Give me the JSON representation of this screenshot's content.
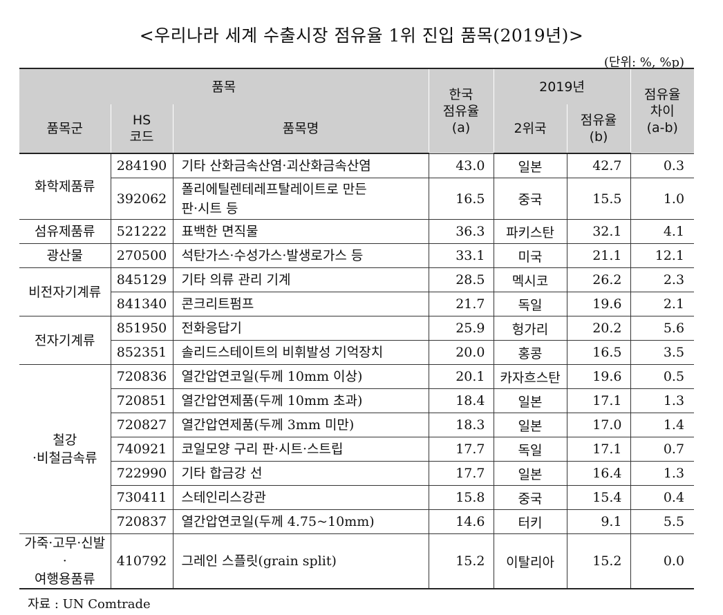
{
  "title": "<우리나라 세계 수출시장 점유율 1위 진입 품목(2019년)>",
  "unit": "(단위: %, %p)",
  "header": {
    "item": "품목",
    "korea_share_l1": "한국",
    "korea_share_l2": "점유율",
    "korea_share_l3": "(a)",
    "year": "2019년",
    "share_diff_l1": "점유율",
    "share_diff_l2": "차이",
    "share_diff_l3": "(a-b)",
    "group": "품목군",
    "hs_l1": "HS",
    "hs_l2": "코드",
    "item_name": "품목명",
    "second_country": "2위국",
    "second_share_l1": "점유율",
    "second_share_l2": "(b)"
  },
  "groups": [
    {
      "name": "화학제품류"
    },
    {
      "name": "섬유제품류"
    },
    {
      "name": "광산물"
    },
    {
      "name": "비전자기계류"
    },
    {
      "name": "전자기계류"
    },
    {
      "name_l1": "철강",
      "name_l2": "·비철금속류"
    },
    {
      "name_l1": "가죽·고무·신발·",
      "name_l2": "여행용품류"
    }
  ],
  "rows": [
    {
      "hs": "284190",
      "name": "기타 산화금속산염·괴산화금속산염",
      "a": "43.0",
      "country": "일본",
      "b": "42.7",
      "diff": "0.3"
    },
    {
      "hs": "392062",
      "name_l1": "폴리에틸렌테레프탈레이트로 만든",
      "name_l2": "판·시트 등",
      "a": "16.5",
      "country": "중국",
      "b": "15.5",
      "diff": "1.0"
    },
    {
      "hs": "521222",
      "name": "표백한 면직물",
      "a": "36.3",
      "country": "파키스탄",
      "b": "32.1",
      "diff": "4.1"
    },
    {
      "hs": "270500",
      "name": "석탄가스·수성가스·발생로가스 등",
      "a": "33.1",
      "country": "미국",
      "b": "21.1",
      "diff": "12.1"
    },
    {
      "hs": "845129",
      "name": "기타 의류 관리 기계",
      "a": "28.5",
      "country": "멕시코",
      "b": "26.2",
      "diff": "2.3"
    },
    {
      "hs": "841340",
      "name": "콘크리트펌프",
      "a": "21.7",
      "country": "독일",
      "b": "19.6",
      "diff": "2.1"
    },
    {
      "hs": "851950",
      "name": "전화응답기",
      "a": "25.9",
      "country": "헝가리",
      "b": "20.2",
      "diff": "5.6"
    },
    {
      "hs": "852351",
      "name": "솔리드스테이트의 비휘발성 기억장치",
      "a": "20.0",
      "country": "홍콩",
      "b": "16.5",
      "diff": "3.5"
    },
    {
      "hs": "720836",
      "name": "열간압연코일(두께 10mm 이상)",
      "a": "20.1",
      "country": "카자흐스탄",
      "b": "19.6",
      "diff": "0.5"
    },
    {
      "hs": "720851",
      "name": "열간압연제품(두께 10mm 초과)",
      "a": "18.4",
      "country": "일본",
      "b": "17.1",
      "diff": "1.3"
    },
    {
      "hs": "720827",
      "name": "열간압연제품(두께 3mm 미만)",
      "a": "18.3",
      "country": "일본",
      "b": "17.0",
      "diff": "1.4"
    },
    {
      "hs": "740921",
      "name": "코일모양 구리 판·시트·스트립",
      "a": "17.7",
      "country": "독일",
      "b": "17.1",
      "diff": "0.7"
    },
    {
      "hs": "722990",
      "name": "기타 합금강 선",
      "a": "17.7",
      "country": "일본",
      "b": "16.4",
      "diff": "1.3"
    },
    {
      "hs": "730411",
      "name": "스테인리스강관",
      "a": "15.8",
      "country": "중국",
      "b": "15.4",
      "diff": "0.4"
    },
    {
      "hs": "720837",
      "name": "열간압연코일(두께 4.75~10mm)",
      "a": "14.6",
      "country": "터키",
      "b": "9.1",
      "diff": "5.5"
    },
    {
      "hs": "410792",
      "name": "그레인 스플릿(grain split)",
      "a": "15.2",
      "country": "이탈리아",
      "b": "15.2",
      "diff": "0.0"
    }
  ],
  "source": "자료 : UN Comtrade"
}
